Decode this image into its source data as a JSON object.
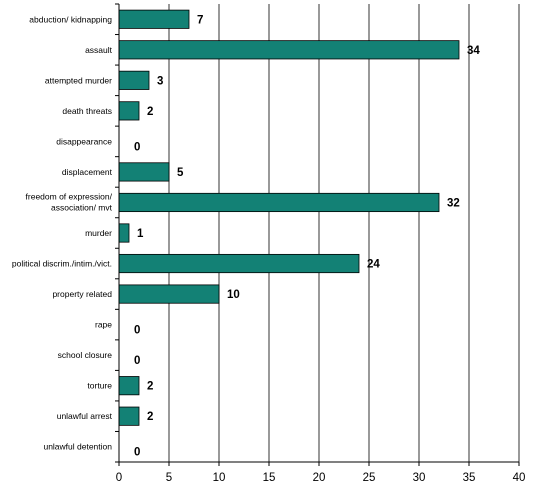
{
  "chart_data": {
    "type": "bar",
    "orientation": "horizontal",
    "categories": [
      "abduction/ kidnapping",
      [
        "assault"
      ],
      "attempted murder",
      "death threats",
      "disappearance",
      "displacement",
      "freedom of expression/ association/ mvt",
      "murder",
      "political discrim./intim./vict.",
      "property related",
      "rape",
      "school closure",
      "torture",
      "unlawful arrest",
      "unlawful detention"
    ],
    "values": [
      7,
      34,
      3,
      2,
      0,
      5,
      32,
      1,
      24,
      10,
      0,
      0,
      2,
      2,
      0
    ],
    "xlim": [
      0,
      40
    ],
    "xticks": [
      0,
      5,
      10,
      15,
      20,
      25,
      30,
      35,
      40
    ],
    "grid": true,
    "title": "",
    "xlabel": "",
    "ylabel": "",
    "colors": {
      "bar": "#138175",
      "bar_stroke": "#000000",
      "grid": "#000000"
    }
  }
}
